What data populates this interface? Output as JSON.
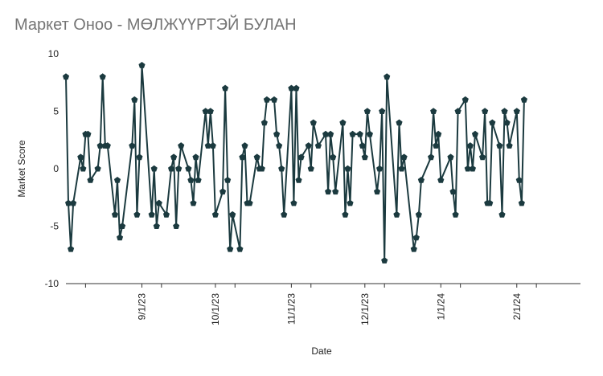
{
  "chart_data": {
    "type": "line",
    "title": "Маркет Оноо - МӨЛЖҮҮРТЭЙ БУЛАН",
    "xlabel": "Date",
    "ylabel": "Market Score",
    "ylim": [
      -10,
      10
    ],
    "yticks": [
      10,
      5,
      0,
      -5,
      -10
    ],
    "xlim": [
      "2023-08-01",
      "2024-02-27"
    ],
    "xticks": [
      {
        "date": "2023-08-09",
        "label": ""
      },
      {
        "date": "2023-09-01",
        "label": "9/1/23"
      },
      {
        "date": "2023-09-09",
        "label": ""
      },
      {
        "date": "2023-10-01",
        "label": "10/1/23"
      },
      {
        "date": "2023-10-09",
        "label": ""
      },
      {
        "date": "2023-11-01",
        "label": "11/1/23"
      },
      {
        "date": "2023-11-09",
        "label": ""
      },
      {
        "date": "2023-12-01",
        "label": "12/1/23"
      },
      {
        "date": "2023-12-09",
        "label": ""
      },
      {
        "date": "2024-01-01",
        "label": "1/1/24"
      },
      {
        "date": "2024-01-09",
        "label": ""
      },
      {
        "date": "2024-02-01",
        "label": "2/1/24"
      },
      {
        "date": "2024-02-09",
        "label": ""
      }
    ],
    "grid": false,
    "legend": "none",
    "line_color": "#1b3a3f",
    "marker": "pentagon",
    "series": [
      {
        "points": [
          [
            "2023-08-01",
            8
          ],
          [
            "2023-08-02",
            -3
          ],
          [
            "2023-08-03",
            -7
          ],
          [
            "2023-08-04",
            -3
          ],
          [
            "2023-08-07",
            1
          ],
          [
            "2023-08-08",
            0
          ],
          [
            "2023-08-09",
            3
          ],
          [
            "2023-08-10",
            3
          ],
          [
            "2023-08-11",
            -1
          ],
          [
            "2023-08-14",
            0
          ],
          [
            "2023-08-15",
            2
          ],
          [
            "2023-08-16",
            8
          ],
          [
            "2023-08-17",
            2
          ],
          [
            "2023-08-18",
            2
          ],
          [
            "2023-08-21",
            -4
          ],
          [
            "2023-08-22",
            -1
          ],
          [
            "2023-08-23",
            -6
          ],
          [
            "2023-08-24",
            -5
          ],
          [
            "2023-08-28",
            2
          ],
          [
            "2023-08-29",
            6
          ],
          [
            "2023-08-30",
            -4
          ],
          [
            "2023-08-31",
            1
          ],
          [
            "2023-09-01",
            9
          ],
          [
            "2023-09-05",
            -4
          ],
          [
            "2023-09-06",
            0
          ],
          [
            "2023-09-07",
            -5
          ],
          [
            "2023-09-08",
            -3
          ],
          [
            "2023-09-11",
            -4
          ],
          [
            "2023-09-13",
            0
          ],
          [
            "2023-09-14",
            1
          ],
          [
            "2023-09-15",
            -5
          ],
          [
            "2023-09-16",
            0
          ],
          [
            "2023-09-17",
            2
          ],
          [
            "2023-09-20",
            0
          ],
          [
            "2023-09-21",
            -1
          ],
          [
            "2023-09-22",
            -3
          ],
          [
            "2023-09-23",
            1
          ],
          [
            "2023-09-24",
            -1
          ],
          [
            "2023-09-27",
            5
          ],
          [
            "2023-09-28",
            2
          ],
          [
            "2023-09-29",
            5
          ],
          [
            "2023-09-30",
            2
          ],
          [
            "2023-10-01",
            -4
          ],
          [
            "2023-10-04",
            -2
          ],
          [
            "2023-10-05",
            7
          ],
          [
            "2023-10-06",
            -1
          ],
          [
            "2023-10-07",
            -7
          ],
          [
            "2023-10-08",
            -4
          ],
          [
            "2023-10-11",
            -7
          ],
          [
            "2023-10-12",
            1
          ],
          [
            "2023-10-13",
            2
          ],
          [
            "2023-10-14",
            -3
          ],
          [
            "2023-10-15",
            -3
          ],
          [
            "2023-10-18",
            1
          ],
          [
            "2023-10-19",
            0
          ],
          [
            "2023-10-20",
            0
          ],
          [
            "2023-10-21",
            4
          ],
          [
            "2023-10-22",
            6
          ],
          [
            "2023-10-25",
            6
          ],
          [
            "2023-10-26",
            3
          ],
          [
            "2023-10-27",
            2
          ],
          [
            "2023-10-28",
            0
          ],
          [
            "2023-10-29",
            -4
          ],
          [
            "2023-11-01",
            7
          ],
          [
            "2023-11-02",
            -3
          ],
          [
            "2023-11-03",
            7
          ],
          [
            "2023-11-04",
            -1
          ],
          [
            "2023-11-05",
            1
          ],
          [
            "2023-11-08",
            2
          ],
          [
            "2023-11-09",
            0
          ],
          [
            "2023-11-10",
            4
          ],
          [
            "2023-11-12",
            2
          ],
          [
            "2023-11-15",
            3
          ],
          [
            "2023-11-16",
            -2
          ],
          [
            "2023-11-17",
            3
          ],
          [
            "2023-11-18",
            1
          ],
          [
            "2023-11-19",
            -2
          ],
          [
            "2023-11-22",
            4
          ],
          [
            "2023-11-23",
            -4
          ],
          [
            "2023-11-24",
            0
          ],
          [
            "2023-11-25",
            -3
          ],
          [
            "2023-11-26",
            3
          ],
          [
            "2023-11-29",
            3
          ],
          [
            "2023-11-30",
            2
          ],
          [
            "2023-12-01",
            1
          ],
          [
            "2023-12-02",
            5
          ],
          [
            "2023-12-03",
            3
          ],
          [
            "2023-12-06",
            -2
          ],
          [
            "2023-12-07",
            0
          ],
          [
            "2023-12-08",
            5
          ],
          [
            "2023-12-09",
            -8
          ],
          [
            "2023-12-10",
            8
          ],
          [
            "2023-12-14",
            -4
          ],
          [
            "2023-12-15",
            4
          ],
          [
            "2023-12-16",
            0
          ],
          [
            "2023-12-17",
            1
          ],
          [
            "2023-12-21",
            -7
          ],
          [
            "2023-12-22",
            -6
          ],
          [
            "2023-12-23",
            -4
          ],
          [
            "2023-12-24",
            -1
          ],
          [
            "2023-12-28",
            1
          ],
          [
            "2023-12-29",
            5
          ],
          [
            "2023-12-30",
            2
          ],
          [
            "2023-12-31",
            3
          ],
          [
            "2024-01-01",
            -1
          ],
          [
            "2024-01-05",
            1
          ],
          [
            "2024-01-06",
            -2
          ],
          [
            "2024-01-07",
            -4
          ],
          [
            "2024-01-08",
            5
          ],
          [
            "2024-01-11",
            6
          ],
          [
            "2024-01-12",
            0
          ],
          [
            "2024-01-13",
            2
          ],
          [
            "2024-01-14",
            0
          ],
          [
            "2024-01-15",
            3
          ],
          [
            "2024-01-18",
            1
          ],
          [
            "2024-01-19",
            5
          ],
          [
            "2024-01-20",
            -3
          ],
          [
            "2024-01-21",
            -3
          ],
          [
            "2024-01-22",
            4
          ],
          [
            "2024-01-25",
            2
          ],
          [
            "2024-01-26",
            -4
          ],
          [
            "2024-01-27",
            5
          ],
          [
            "2024-01-28",
            4
          ],
          [
            "2024-01-29",
            2
          ],
          [
            "2024-02-01",
            5
          ],
          [
            "2024-02-02",
            -1
          ],
          [
            "2024-02-03",
            -3
          ],
          [
            "2024-02-04",
            6
          ]
        ]
      }
    ]
  }
}
